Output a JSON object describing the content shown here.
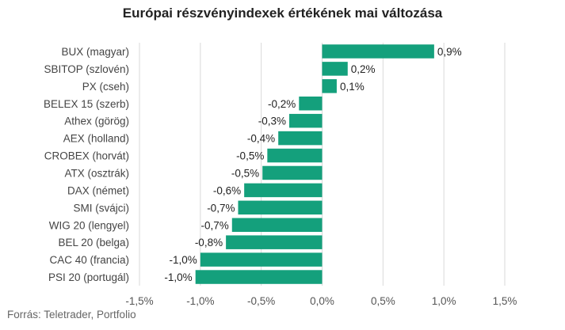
{
  "chart_data": {
    "type": "bar",
    "orientation": "horizontal",
    "title": "Európai részvényindexek értékének mai változása",
    "source": "Forrás: Teletrader, Portfolio",
    "categories": [
      "BUX (magyar)",
      "SBITOP (szlovén)",
      "PX (cseh)",
      "BELEX 15 (szerb)",
      "Athex (görög)",
      "AEX (holland)",
      "CROBEX (horvát)",
      "ATX (osztrák)",
      "DAX (német)",
      "SMI (svájci)",
      "WIG 20 (lengyel)",
      "BEL 20 (belga)",
      "CAC 40 (francia)",
      "PSI 20 (portugál)"
    ],
    "values": [
      0.92,
      0.21,
      0.12,
      -0.19,
      -0.27,
      -0.36,
      -0.45,
      -0.49,
      -0.64,
      -0.69,
      -0.74,
      -0.79,
      -1.0,
      -1.04
    ],
    "value_labels": [
      "0,9%",
      "0,2%",
      "0,1%",
      "-0,2%",
      "-0,3%",
      "-0,4%",
      "-0,5%",
      "-0,5%",
      "-0,6%",
      "-0,7%",
      "-0,7%",
      "-0,8%",
      "-1,0%",
      "-1,0%"
    ],
    "xlim": [
      -1.5,
      1.5
    ],
    "xticks": [
      -1.5,
      -1.0,
      -0.5,
      0.0,
      0.5,
      1.0,
      1.5
    ],
    "xtick_labels": [
      "-1,5%",
      "-1,0%",
      "-0,5%",
      "0,0%",
      "0,5%",
      "1,0%",
      "1,5%"
    ],
    "grid": true,
    "colors": {
      "bar": "#14a07c"
    }
  }
}
